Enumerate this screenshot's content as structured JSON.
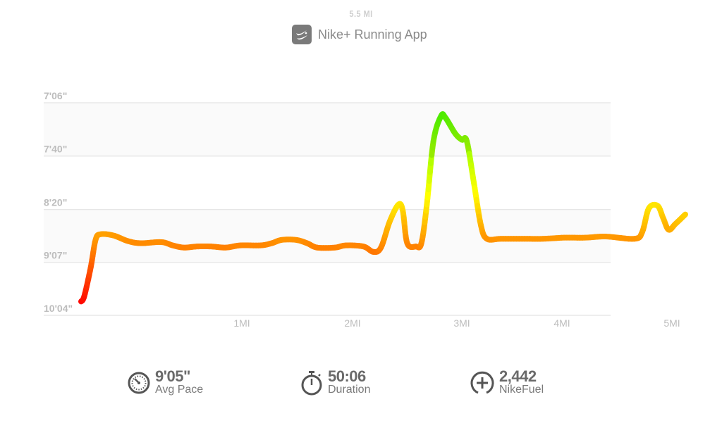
{
  "header": {
    "distance": "5.5 MI",
    "app_name": "Nike+ Running App",
    "app_icon": "nike-swoosh-icon"
  },
  "chart_data": {
    "type": "line",
    "title": "",
    "xlabel": "",
    "ylabel": "",
    "y_unit": "pace (min'sec\" per mile)",
    "y_ticks": [
      "7'06\"",
      "7'40\"",
      "8'20\"",
      "9'07\"",
      "10'04\""
    ],
    "x_ticks": [
      "1MI",
      "2MI",
      "3MI",
      "4MI",
      "5MI"
    ],
    "grid": true,
    "color_scale": {
      "slow": "#ff1a00",
      "mid": "#ff9a00",
      "moderate": "#f5dc00",
      "fast": "#3fdc00"
    },
    "series": [
      {
        "distance_mi": [
          0,
          0.02,
          0.06,
          0.09,
          0.12,
          0.2,
          0.29,
          0.37,
          0.5,
          0.57,
          0.64,
          0.72,
          0.81,
          0.9,
          0.99,
          1.17,
          1.27,
          1.36,
          1.49,
          1.59,
          1.68,
          1.84,
          1.94,
          2.1,
          2.19,
          2.26,
          2.34,
          2.42,
          2.46,
          2.5,
          2.58,
          2.63,
          2.68,
          2.74,
          2.81,
          2.85,
          2.94,
          3.0,
          3.05,
          3.12,
          3.19,
          3.25,
          3.39,
          3.6,
          3.81,
          4.02,
          4.21,
          4.4,
          4.66,
          4.73,
          4.79,
          4.87,
          4.92,
          4.97,
          5.13,
          5.5
        ],
        "pace": [
          "9'48\"",
          "9'42\"",
          "9'12\"",
          "8'46\"",
          "8'41\"",
          "8'42\"",
          "8'47\"",
          "8'49\"",
          "8'48\"",
          "8'51\"",
          "8'53\"",
          "8'52\"",
          "8'52\"",
          "8'53\"",
          "8'51\"",
          "8'51\"",
          "8'49\"",
          "8'46\"",
          "8'46\"",
          "8'49\"",
          "8'53\"",
          "8'53\"",
          "8'51\"",
          "8'52\"",
          "8'57\"",
          "8'53\"",
          "8'30\"",
          "8'16\"",
          "8'21\"",
          "8'49\"",
          "8'52\"",
          "8'49\"",
          "8'16\"",
          "7'30\"",
          "7'14\"",
          "7'15\"",
          "7'25\"",
          "7'29\"",
          "7'30\"",
          "7'59\"",
          "8'33\"",
          "8'45\"",
          "8'45\"",
          "8'45\"",
          "8'45\"",
          "8'44\"",
          "8'44\"",
          "8'43\"",
          "8'45\"",
          "8'39\"",
          "8'19\"",
          "8'17\"",
          "8'27\"",
          "8'37\"",
          "8'32\"",
          "8'24\""
        ]
      }
    ]
  },
  "stats": [
    {
      "icon": "speedometer-icon",
      "value": "9'05\"",
      "label": "Avg Pace"
    },
    {
      "icon": "stopwatch-icon",
      "value": "50:06",
      "label": "Duration"
    },
    {
      "icon": "nikefuel-plus-icon",
      "value": "2,442",
      "label": "NikeFuel"
    }
  ]
}
